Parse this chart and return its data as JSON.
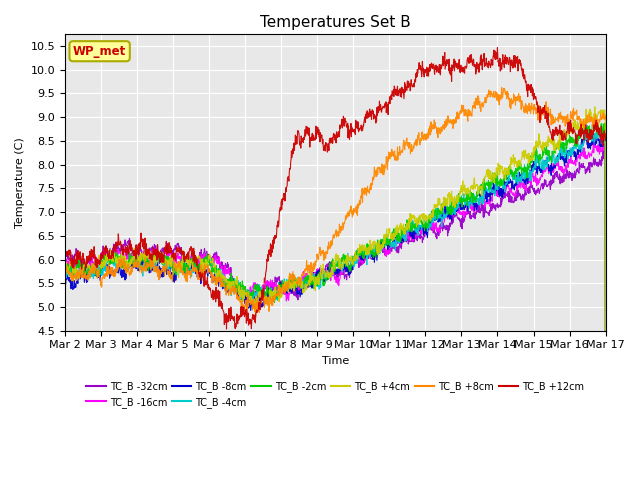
{
  "title": "Temperatures Set B",
  "xlabel": "Time",
  "ylabel": "Temperature (C)",
  "ylim": [
    4.5,
    10.75
  ],
  "xlim": [
    0,
    15
  ],
  "xtick_labels": [
    "Mar 2",
    "Mar 3",
    "Mar 4",
    "Mar 5",
    "Mar 6",
    "Mar 7",
    "Mar 8",
    "Mar 9",
    "Mar 10",
    "Mar 11",
    "Mar 12",
    "Mar 13",
    "Mar 14",
    "Mar 15",
    "Mar 16",
    "Mar 17"
  ],
  "xtick_positions": [
    0,
    1,
    2,
    3,
    4,
    5,
    6,
    7,
    8,
    9,
    10,
    11,
    12,
    13,
    14,
    15
  ],
  "series": [
    {
      "label": "TC_B -32cm",
      "color": "#9900CC"
    },
    {
      "label": "TC_B -16cm",
      "color": "#FF00FF"
    },
    {
      "label": "TC_B -8cm",
      "color": "#0000CC"
    },
    {
      "label": "TC_B -4cm",
      "color": "#00CCCC"
    },
    {
      "label": "TC_B -2cm",
      "color": "#00CC00"
    },
    {
      "label": "TC_B +4cm",
      "color": "#CCCC00"
    },
    {
      "label": "TC_B +8cm",
      "color": "#FF8800"
    },
    {
      "label": "TC_B +12cm",
      "color": "#CC0000"
    }
  ],
  "annotation_label": "WP_met",
  "annotation_color": "#CC0000",
  "annotation_bg": "#FFFF99",
  "annotation_border": "#AAAA00",
  "background_color": "#E8E8E8",
  "title_fontsize": 11,
  "axis_fontsize": 8,
  "legend_fontsize": 8
}
